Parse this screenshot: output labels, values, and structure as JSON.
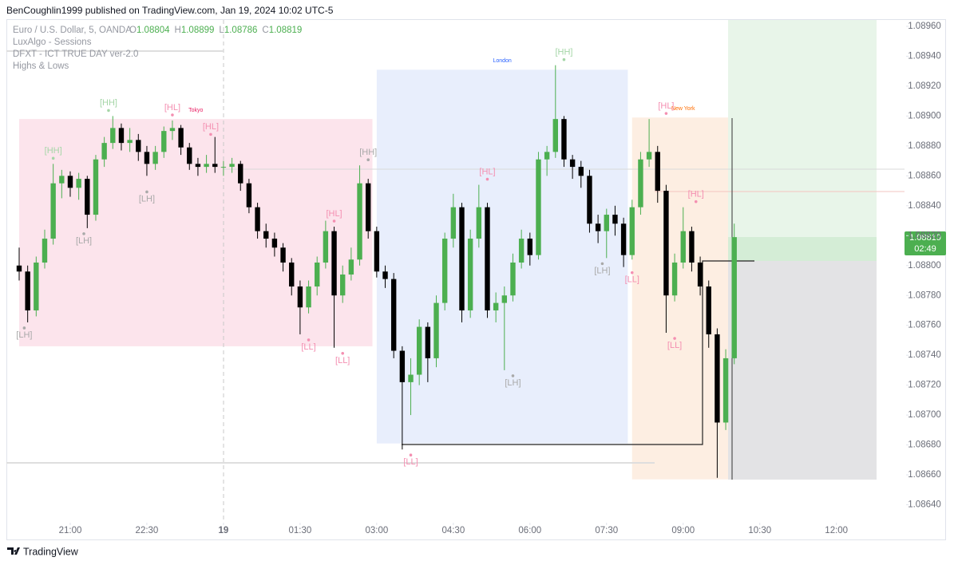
{
  "header": "BenCoughlin1999 published on TradingView.com, Jan 19, 2024 10:02 UTC-5",
  "footer": "TradingView",
  "chart_data": {
    "type": "candlestick",
    "title": "Euro / U.S. Dollar, 5, OANDA",
    "ohlc_legend": [
      {
        "key": "O",
        "value": 1.08804
      },
      {
        "key": "H",
        "value": 1.08899
      },
      {
        "key": "L",
        "value": 1.08786
      },
      {
        "key": "C",
        "value": 1.08819
      }
    ],
    "indicators": [
      "LuxAlgo - Sessions",
      "DFXT - ICT TRUE DAY ver-2.0",
      "Highs & Lows"
    ],
    "countdown": "02:49",
    "up_color": "#4caf50",
    "down_color": "#000000",
    "xlim": [
      1185,
      2240
    ],
    "xticks": [
      {
        "value": 1260,
        "label": "21:00"
      },
      {
        "value": 1350,
        "label": "22:30"
      },
      {
        "value": 1440,
        "label": "19"
      },
      {
        "value": 1530,
        "label": "01:30"
      },
      {
        "value": 1620,
        "label": "03:00"
      },
      {
        "value": 1710,
        "label": "04:30"
      },
      {
        "value": 1800,
        "label": "06:00"
      },
      {
        "value": 1890,
        "label": "07:30"
      },
      {
        "value": 1980,
        "label": "09:00"
      },
      {
        "value": 2070,
        "label": "10:30"
      },
      {
        "value": 2160,
        "label": "12:00"
      }
    ],
    "ylim": [
      1.08628,
      1.08968
    ],
    "yticks": [
      {
        "value": 1.0896,
        "label": "1.08960"
      },
      {
        "value": 1.0894,
        "label": "1.08940"
      },
      {
        "value": 1.0892,
        "label": "1.08920"
      },
      {
        "value": 1.089,
        "label": "1.08900"
      },
      {
        "value": 1.0888,
        "label": "1.08880"
      },
      {
        "value": 1.0886,
        "label": "1.08860"
      },
      {
        "value": 1.0884,
        "label": "1.08840"
      },
      {
        "value": 1.0882,
        "label": "1.08820"
      },
      {
        "value": 1.088,
        "label": "1.08800"
      },
      {
        "value": 1.0878,
        "label": "1.08780"
      },
      {
        "value": 1.0876,
        "label": "1.08760"
      },
      {
        "value": 1.0874,
        "label": "1.08740"
      },
      {
        "value": 1.0872,
        "label": "1.08720"
      },
      {
        "value": 1.087,
        "label": "1.08700"
      },
      {
        "value": 1.0868,
        "label": "1.08680"
      },
      {
        "value": 1.0866,
        "label": "1.08660"
      },
      {
        "value": 1.0864,
        "label": "1.08640"
      }
    ],
    "sessions": [
      {
        "name": "Tokyo",
        "color": "#fce4ec",
        "label_color": "#e91e63",
        "start": 1200,
        "end": 1615,
        "high": 1.08898,
        "low": 1.08746
      },
      {
        "name": "London",
        "color": "#e8eefc",
        "label_color": "#2962ff",
        "start": 1620,
        "end": 1915,
        "high": 1.08931,
        "low": 1.08681
      },
      {
        "name": "New York",
        "color": "#fdeee2",
        "label_color": "#ff6d00",
        "start": 1920,
        "end": 2040,
        "high": 1.08899,
        "low": 1.08657
      }
    ],
    "swings": [
      {
        "label": "[LH]",
        "x": 1206,
        "price": 1.08762,
        "side": "low",
        "color": "#a9a9a9"
      },
      {
        "label": "[HH]",
        "x": 1240,
        "price": 1.08868,
        "side": "high",
        "color": "#a5d6a7"
      },
      {
        "label": "[LH]",
        "x": 1276,
        "price": 1.08825,
        "side": "low",
        "color": "#a9a9a9"
      },
      {
        "label": "[HH]",
        "x": 1305,
        "price": 1.089,
        "side": "high",
        "color": "#a5d6a7"
      },
      {
        "label": "[LH]",
        "x": 1350,
        "price": 1.08853,
        "side": "low",
        "color": "#a9a9a9"
      },
      {
        "label": "[HL]",
        "x": 1380,
        "price": 1.08897,
        "side": "high",
        "color": "#f48fb1"
      },
      {
        "label": "[HL]",
        "x": 1425,
        "price": 1.08884,
        "side": "high",
        "color": "#f48fb1"
      },
      {
        "label": "[LL]",
        "x": 1540,
        "price": 1.08754,
        "side": "low",
        "color": "#f48fb1"
      },
      {
        "label": "[HL]",
        "x": 1570,
        "price": 1.08826,
        "side": "high",
        "color": "#f48fb1"
      },
      {
        "label": "[LL]",
        "x": 1580,
        "price": 1.08745,
        "side": "low",
        "color": "#f48fb1"
      },
      {
        "label": "[HH]",
        "x": 1610,
        "price": 1.08867,
        "side": "high",
        "color": "#a9a9a9"
      },
      {
        "label": "[LL]",
        "x": 1660,
        "price": 1.08677,
        "side": "low",
        "color": "#f48fb1"
      },
      {
        "label": "[HL]",
        "x": 1750,
        "price": 1.08854,
        "side": "high",
        "color": "#f48fb1"
      },
      {
        "label": "[LH]",
        "x": 1780,
        "price": 1.0873,
        "side": "low",
        "color": "#a9a9a9"
      },
      {
        "label": "[HH]",
        "x": 1840,
        "price": 1.08934,
        "side": "high",
        "color": "#a5d6a7"
      },
      {
        "label": "[LH]",
        "x": 1885,
        "price": 1.08805,
        "side": "low",
        "color": "#a9a9a9"
      },
      {
        "label": "[LL]",
        "x": 1920,
        "price": 1.08799,
        "side": "low",
        "color": "#f48fb1"
      },
      {
        "label": "[HL]",
        "x": 1960,
        "price": 1.08898,
        "side": "high",
        "color": "#f48fb1"
      },
      {
        "label": "[LL]",
        "x": 1970,
        "price": 1.08755,
        "side": "low",
        "color": "#f48fb1"
      },
      {
        "label": "[HL]",
        "x": 1995,
        "price": 1.08839,
        "side": "high",
        "color": "#f48fb1"
      }
    ],
    "series": {
      "x": [
        1200,
        1210,
        1220,
        1230,
        1240,
        1250,
        1260,
        1270,
        1280,
        1290,
        1300,
        1310,
        1320,
        1330,
        1340,
        1350,
        1360,
        1370,
        1380,
        1390,
        1400,
        1410,
        1420,
        1430,
        1440,
        1450,
        1460,
        1470,
        1480,
        1490,
        1500,
        1510,
        1520,
        1530,
        1540,
        1550,
        1560,
        1570,
        1580,
        1590,
        1600,
        1610,
        1620,
        1630,
        1640,
        1650,
        1660,
        1670,
        1680,
        1690,
        1700,
        1710,
        1720,
        1730,
        1740,
        1750,
        1760,
        1770,
        1780,
        1790,
        1800,
        1810,
        1820,
        1830,
        1840,
        1850,
        1860,
        1870,
        1880,
        1890,
        1900,
        1910,
        1920,
        1930,
        1940,
        1950,
        1960,
        1970,
        1980,
        1990,
        2000,
        2010,
        2020,
        2030,
        2040
      ],
      "open": [
        1.088,
        1.08796,
        1.0877,
        1.08802,
        1.08818,
        1.08855,
        1.0886,
        1.08852,
        1.08858,
        1.08834,
        1.08871,
        1.08882,
        1.08892,
        1.08882,
        1.08884,
        1.08876,
        1.08868,
        1.08876,
        1.0889,
        1.08892,
        1.08879,
        1.08868,
        1.08866,
        1.08868,
        1.08866,
        1.08866,
        1.08868,
        1.08855,
        1.08839,
        1.08823,
        1.08818,
        1.08812,
        1.08802,
        1.08786,
        1.08772,
        1.08786,
        1.08802,
        1.08823,
        1.0878,
        1.08794,
        1.08804,
        1.08855,
        1.08823,
        1.08796,
        1.08791,
        1.08743,
        1.08722,
        1.08727,
        1.08759,
        1.08738,
        1.08775,
        1.08818,
        1.08839,
        1.0877,
        1.08818,
        1.08839,
        1.0877,
        1.08775,
        1.0878,
        1.08802,
        1.08818,
        1.08807,
        1.08871,
        1.08876,
        1.08898,
        1.08871,
        1.08866,
        1.0886,
        1.08828,
        1.08823,
        1.08834,
        1.08828,
        1.08807,
        1.08839,
        1.08871,
        1.08876,
        1.0885,
        1.0878,
        1.08802,
        1.08823,
        1.08802,
        1.08786,
        1.08754,
        1.08695,
        1.08738
      ],
      "high": [
        1.08812,
        1.088,
        1.08806,
        1.08824,
        1.08868,
        1.08864,
        1.08863,
        1.08862,
        1.0886,
        1.08874,
        1.08886,
        1.089,
        1.08895,
        1.08892,
        1.08888,
        1.0888,
        1.0888,
        1.08893,
        1.08897,
        1.08894,
        1.08882,
        1.08872,
        1.08874,
        1.08886,
        1.0887,
        1.08872,
        1.0887,
        1.08858,
        1.08842,
        1.08828,
        1.08822,
        1.08815,
        1.08805,
        1.0879,
        1.0879,
        1.08806,
        1.0883,
        1.08826,
        1.088,
        1.08812,
        1.08867,
        1.08858,
        1.08826,
        1.088,
        1.08795,
        1.08746,
        1.08738,
        1.08764,
        1.08762,
        1.0878,
        1.08822,
        1.08848,
        1.08842,
        1.08824,
        1.08854,
        1.08842,
        1.08782,
        1.08786,
        1.08808,
        1.08824,
        1.08822,
        1.08876,
        1.0888,
        1.08934,
        1.089,
        1.08874,
        1.0887,
        1.08864,
        1.08834,
        1.08838,
        1.0884,
        1.08832,
        1.08844,
        1.08876,
        1.08898,
        1.0888,
        1.08854,
        1.08808,
        1.08839,
        1.08826,
        1.08806,
        1.0879,
        1.08758,
        1.08744,
        1.08828
      ],
      "low": [
        1.0879,
        1.08762,
        1.08766,
        1.08798,
        1.08814,
        1.08845,
        1.08846,
        1.08844,
        1.08825,
        1.0883,
        1.08866,
        1.08878,
        1.08877,
        1.08876,
        1.0887,
        1.0886,
        1.08864,
        1.08872,
        1.08884,
        1.08874,
        1.08864,
        1.0886,
        1.08862,
        1.08862,
        1.0886,
        1.08862,
        1.0885,
        1.08835,
        1.08818,
        1.08812,
        1.08806,
        1.08796,
        1.0878,
        1.08754,
        1.08768,
        1.0878,
        1.08798,
        1.08745,
        1.08775,
        1.0879,
        1.088,
        1.08818,
        1.08792,
        1.08785,
        1.08738,
        1.08677,
        1.087,
        1.0872,
        1.08722,
        1.08732,
        1.0877,
        1.08812,
        1.08762,
        1.08765,
        1.08812,
        1.08765,
        1.08762,
        1.0873,
        1.08776,
        1.08798,
        1.088,
        1.08804,
        1.0886,
        1.08872,
        1.08866,
        1.08858,
        1.08852,
        1.08822,
        1.08815,
        1.08805,
        1.0882,
        1.08799,
        1.08804,
        1.08834,
        1.08866,
        1.08842,
        1.08755,
        1.08776,
        1.08798,
        1.08796,
        1.0878,
        1.08745,
        1.08658,
        1.0869,
        1.08734
      ],
      "close": [
        1.08796,
        1.0877,
        1.08802,
        1.08818,
        1.08855,
        1.0886,
        1.08852,
        1.08858,
        1.08834,
        1.08871,
        1.08882,
        1.08892,
        1.08882,
        1.08884,
        1.08876,
        1.08868,
        1.08876,
        1.0889,
        1.08892,
        1.08879,
        1.08868,
        1.08866,
        1.08868,
        1.08866,
        1.08866,
        1.08868,
        1.08855,
        1.08839,
        1.08823,
        1.08818,
        1.08812,
        1.08802,
        1.08786,
        1.08772,
        1.08786,
        1.08802,
        1.08823,
        1.0878,
        1.08794,
        1.08804,
        1.08855,
        1.08823,
        1.08796,
        1.08791,
        1.08743,
        1.08722,
        1.08727,
        1.08759,
        1.08738,
        1.08775,
        1.08818,
        1.08839,
        1.0877,
        1.08818,
        1.08839,
        1.0877,
        1.08775,
        1.0878,
        1.08802,
        1.08818,
        1.08807,
        1.08871,
        1.08876,
        1.08898,
        1.08871,
        1.08866,
        1.0886,
        1.08828,
        1.08823,
        1.08834,
        1.08828,
        1.08807,
        1.08839,
        1.08871,
        1.08876,
        1.0885,
        1.0878,
        1.08802,
        1.08823,
        1.08802,
        1.08786,
        1.08754,
        1.08695,
        1.08738,
        1.08819
      ]
    }
  }
}
